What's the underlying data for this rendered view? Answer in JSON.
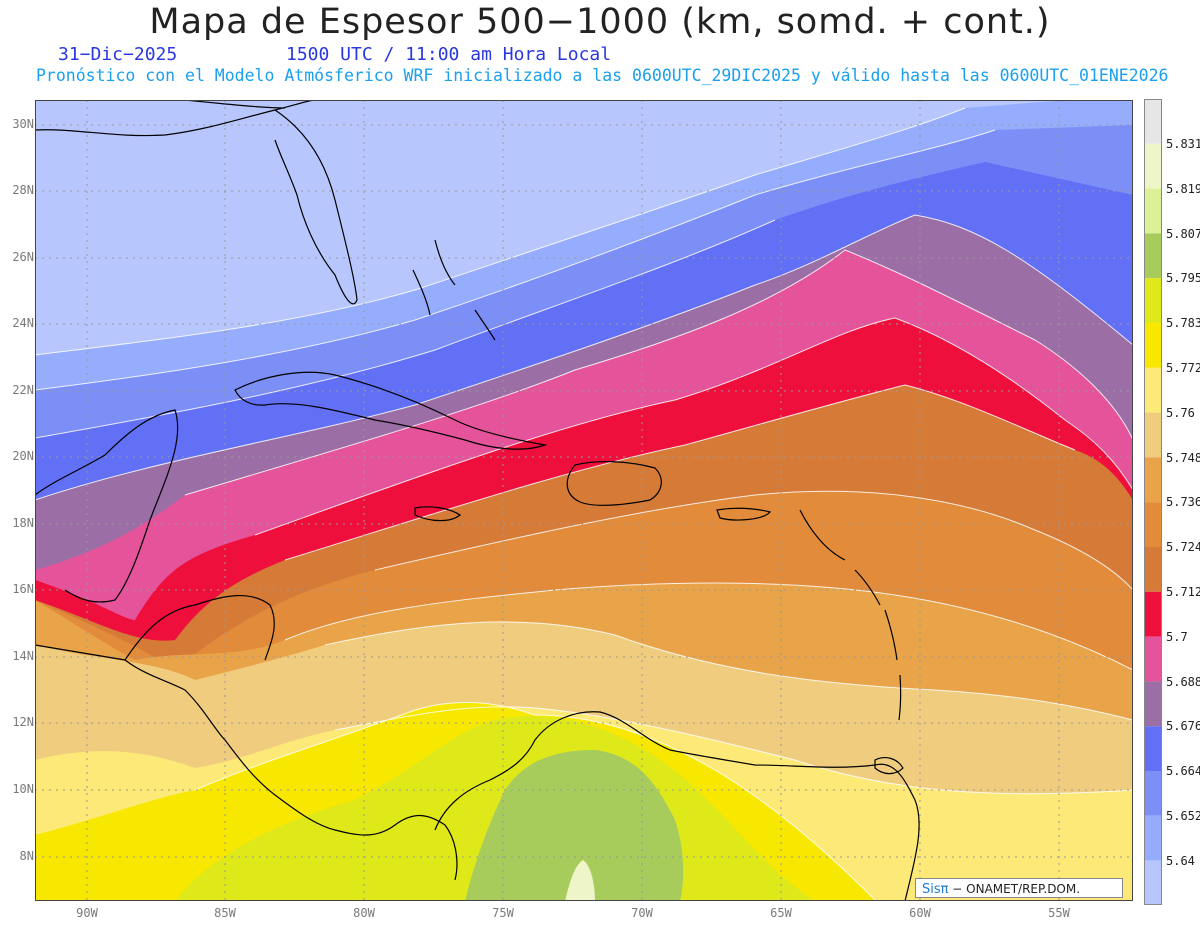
{
  "title": "Mapa de Espesor 500−1000 (km, somd. + cont.)",
  "date": "31−Dic−2025",
  "time_label": "1500 UTC / 11:00 am Hora Local",
  "subtitle": "Pronóstico con el Modelo Atmósferico WRF inicializado a las 0600UTC_29DIC2025 y válido hasta las  0600UTC_01ENE2026",
  "lat_labels": [
    "30N",
    "28N",
    "26N",
    "24N",
    "22N",
    "20N",
    "18N",
    "16N",
    "14N",
    "12N",
    "10N",
    "8N"
  ],
  "lon_labels": [
    "90W",
    "85W",
    "80W",
    "75W",
    "70W",
    "65W",
    "60W",
    "55W"
  ],
  "colorbar": {
    "labels": [
      "5.831",
      "5.819",
      "5.807",
      "5.795",
      "5.783",
      "5.772",
      "5.76",
      "5.748",
      "5.736",
      "5.724",
      "5.712",
      "5.7",
      "5.688",
      "5.676",
      "5.664",
      "5.652",
      "5.64"
    ],
    "colors_top_to_bottom": [
      "#e6e6e6",
      "#eef5c8",
      "#dcf097",
      "#a8cc5c",
      "#dfe91a",
      "#f8e800",
      "#fde978",
      "#f0cd7e",
      "#e9a44a",
      "#e28b3a",
      "#d67a38",
      "#ee0f3c",
      "#e5549b",
      "#9b6ea6",
      "#6270f5",
      "#7b8ff7",
      "#96acfc",
      "#b7c6fc"
    ]
  },
  "legend_credit": {
    "brand": "Sisπ",
    "text": " − ONAMET/REP.DOM."
  },
  "map_colors": {
    "ocean_background": "#b7c6fc",
    "land_outline": "#000000",
    "gridline": "#999999"
  }
}
